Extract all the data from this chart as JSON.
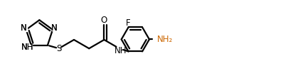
{
  "bg_color": "#ffffff",
  "line_color": "#000000",
  "line_width": 1.6,
  "font_size": 8.5,
  "fig_width": 4.05,
  "fig_height": 1.07,
  "dpi": 100,
  "xlim": [
    0,
    10.5
  ],
  "ylim": [
    0,
    2.8
  ],
  "nh2_color": "#cc6600"
}
